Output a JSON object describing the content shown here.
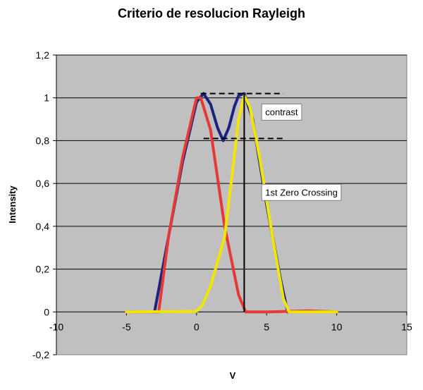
{
  "chart_data": {
    "type": "line",
    "title": "Criterio de resolucion Rayleigh",
    "xlabel": "V",
    "ylabel": "Intensity",
    "xlim": [
      -10,
      15
    ],
    "ylim": [
      -0.2,
      1.2
    ],
    "x_ticks": [
      -10,
      -5,
      0,
      5,
      10,
      15
    ],
    "x_tick_labels": [
      "-10",
      "-5",
      "0",
      "5",
      "10",
      "15"
    ],
    "y_ticks": [
      -0.2,
      0,
      0.2,
      0.4,
      0.6,
      0.8,
      1,
      1.2
    ],
    "y_tick_labels": [
      "-0,2",
      "0",
      "0,2",
      "0,4",
      "0,6",
      "0,8",
      "1",
      "1,2"
    ],
    "grid": "horizontal",
    "legend": "none",
    "plot_background": "#c0c0c0",
    "series": [
      {
        "color": "#1a237e",
        "x": [
          -3,
          -2,
          -1,
          0,
          0.5,
          1,
          1.5,
          1.9,
          2.3,
          2.7,
          3,
          3.4,
          4,
          5,
          6,
          6.5
        ],
        "y": [
          0,
          0.35,
          0.7,
          0.98,
          1.02,
          0.97,
          0.86,
          0.8,
          0.86,
          0.96,
          1.01,
          1.02,
          0.9,
          0.5,
          0.15,
          0
        ]
      },
      {
        "color": "#e53935",
        "x": [
          -5,
          -2.7,
          -2,
          -1,
          0,
          0.3,
          1,
          2,
          3,
          3.5,
          5,
          8,
          10
        ],
        "y": [
          0,
          0,
          0.35,
          0.72,
          1.0,
          1.0,
          0.85,
          0.4,
          0.08,
          0,
          0,
          0.005,
          0
        ]
      },
      {
        "color": "#f2e600",
        "x": [
          -5,
          0,
          0.4,
          1,
          2,
          2.5,
          3,
          3.4,
          3.8,
          4.5,
          5.5,
          6.2,
          6.6,
          8,
          10
        ],
        "y": [
          0,
          0.003,
          0.03,
          0.12,
          0.35,
          0.62,
          0.9,
          1.01,
          0.96,
          0.72,
          0.32,
          0.06,
          0,
          0,
          0
        ]
      }
    ],
    "reference_lines": [
      {
        "style": "dashed",
        "x_from": 0.3,
        "x_to": 6.2,
        "y": 1.02
      },
      {
        "style": "dashed",
        "x_from": 0.5,
        "x_to": 6.2,
        "y": 0.81
      },
      {
        "style": "solid",
        "x": 3.4,
        "y_from": 0,
        "y_to": 1.02
      }
    ],
    "annotations": [
      {
        "text": "contrast",
        "x": 4.6,
        "y": 0.935
      },
      {
        "text": "1st Zero Crossing",
        "x": 4.6,
        "y": 0.56
      }
    ]
  }
}
